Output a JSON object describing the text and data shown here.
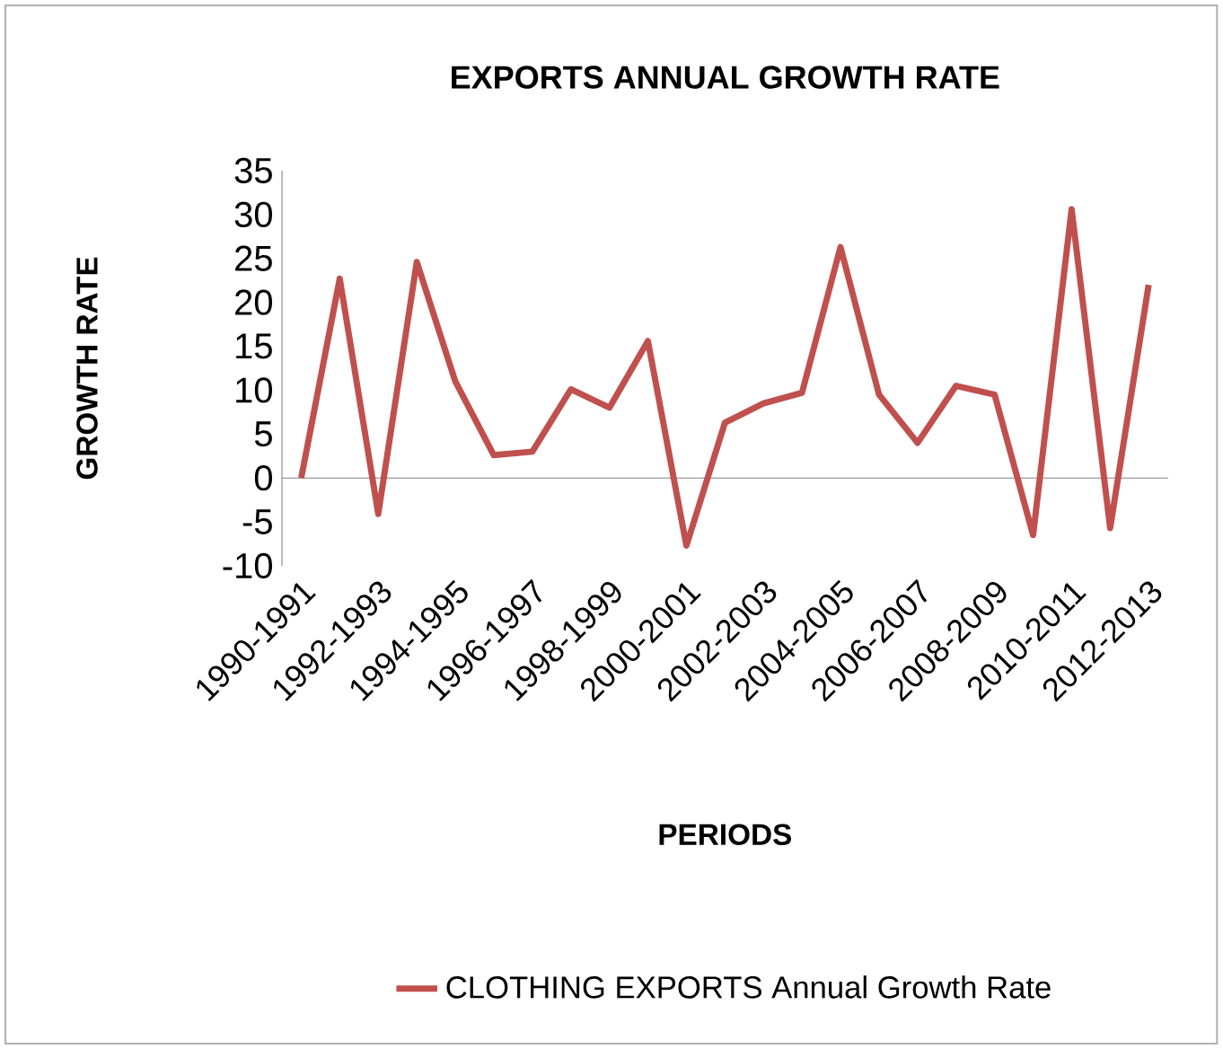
{
  "chart_data": {
    "type": "line",
    "title": "EXPORTS ANNUAL GROWTH RATE",
    "xlabel": "PERIODS",
    "ylabel": "GROWTH RATE",
    "categories": [
      "1990-1991",
      null,
      "1992-1993",
      null,
      "1994-1995",
      null,
      "1996-1997",
      null,
      "1998-1999",
      null,
      "2000-2001",
      null,
      "2002-2003",
      null,
      "2004-2005",
      null,
      "2006-2007",
      null,
      "2008-2009",
      null,
      "2010-2011",
      null,
      "2012-2013"
    ],
    "series": [
      {
        "name": "CLOTHING EXPORTS Annual Growth Rate",
        "color": "#c0504d",
        "values": [
          0,
          22.7,
          -4.1,
          24.6,
          11,
          2.6,
          3,
          10.1,
          8,
          15.6,
          -7.7,
          6.3,
          8.5,
          9.7,
          26.3,
          9.5,
          4,
          10.5,
          9.5,
          -6.5,
          30.6,
          -5.7,
          22
        ]
      }
    ],
    "ylim": [
      -10,
      35
    ],
    "yticks": [
      -10,
      -5,
      0,
      5,
      10,
      15,
      20,
      25,
      30,
      35
    ],
    "legend": "bottom",
    "marker": "none",
    "line_style": "solid"
  }
}
